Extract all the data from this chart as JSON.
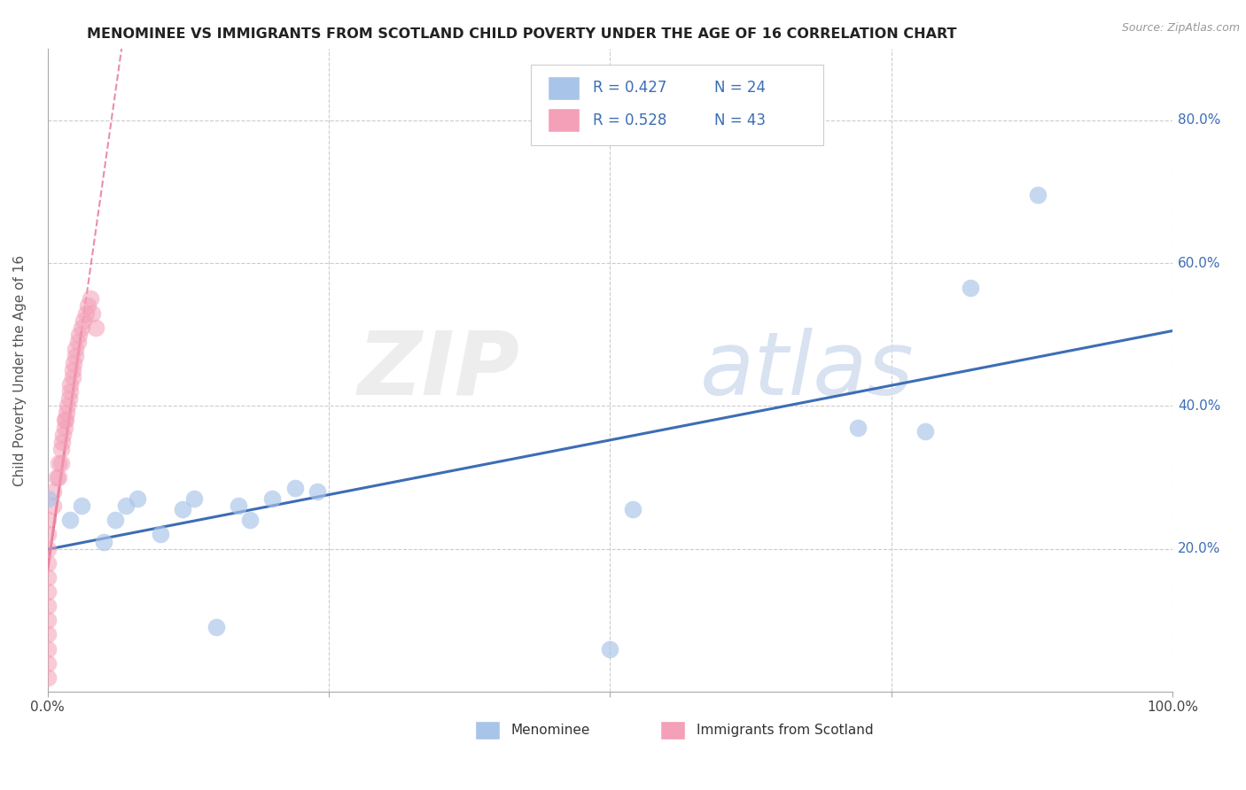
{
  "title": "MENOMINEE VS IMMIGRANTS FROM SCOTLAND CHILD POVERTY UNDER THE AGE OF 16 CORRELATION CHART",
  "source": "Source: ZipAtlas.com",
  "ylabel": "Child Poverty Under the Age of 16",
  "xlim": [
    0.0,
    1.0
  ],
  "ylim": [
    0.0,
    0.9
  ],
  "xticks": [
    0.0,
    0.25,
    0.5,
    0.75,
    1.0
  ],
  "xtick_labels": [
    "0.0%",
    "",
    "",
    "",
    "100.0%"
  ],
  "yticks": [
    0.0,
    0.2,
    0.4,
    0.6,
    0.8
  ],
  "ytick_labels": [
    "",
    "20.0%",
    "40.0%",
    "60.0%",
    "80.0%"
  ],
  "blue_color": "#a8c4e8",
  "pink_color": "#f4a0b8",
  "line_blue": "#3d6db5",
  "line_pink": "#e06080",
  "title_fontsize": 11.5,
  "menominee_x": [
    0.0,
    0.02,
    0.03,
    0.05,
    0.06,
    0.07,
    0.08,
    0.1,
    0.12,
    0.13,
    0.15,
    0.17,
    0.18,
    0.2,
    0.22,
    0.24,
    0.5,
    0.52,
    0.72,
    0.78,
    0.82,
    0.88
  ],
  "menominee_y": [
    0.27,
    0.24,
    0.26,
    0.21,
    0.24,
    0.26,
    0.27,
    0.22,
    0.255,
    0.27,
    0.09,
    0.26,
    0.24,
    0.27,
    0.285,
    0.28,
    0.06,
    0.255,
    0.37,
    0.365,
    0.565,
    0.695
  ],
  "scotland_x": [
    0.0,
    0.0,
    0.0,
    0.0,
    0.0,
    0.0,
    0.0,
    0.0,
    0.0,
    0.0,
    0.0,
    0.0,
    0.005,
    0.005,
    0.008,
    0.01,
    0.01,
    0.012,
    0.012,
    0.013,
    0.014,
    0.015,
    0.015,
    0.016,
    0.017,
    0.018,
    0.019,
    0.02,
    0.02,
    0.022,
    0.022,
    0.023,
    0.025,
    0.025,
    0.027,
    0.028,
    0.03,
    0.032,
    0.034,
    0.036,
    0.038,
    0.04,
    0.043
  ],
  "scotland_y": [
    0.02,
    0.04,
    0.06,
    0.08,
    0.1,
    0.12,
    0.14,
    0.16,
    0.18,
    0.2,
    0.22,
    0.24,
    0.26,
    0.28,
    0.3,
    0.3,
    0.32,
    0.32,
    0.34,
    0.35,
    0.36,
    0.37,
    0.38,
    0.38,
    0.39,
    0.4,
    0.41,
    0.42,
    0.43,
    0.44,
    0.45,
    0.46,
    0.47,
    0.48,
    0.49,
    0.5,
    0.51,
    0.52,
    0.53,
    0.54,
    0.55,
    0.53,
    0.51
  ]
}
